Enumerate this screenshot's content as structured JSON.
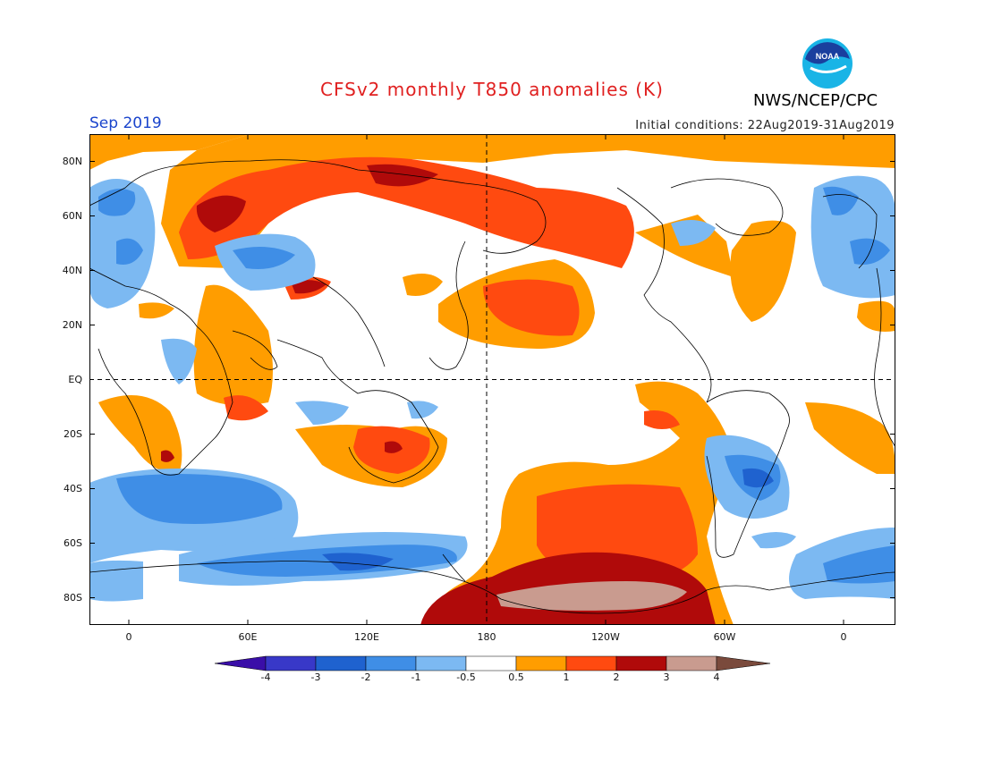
{
  "header": {
    "title": "CFSv2 monthly T850 anomalies (K)",
    "agency": "NWS/NCEP/CPC",
    "logo_text": "NOAA",
    "month": "Sep 2019",
    "initial_conditions": "Initial conditions: 22Aug2019-31Aug2019"
  },
  "map": {
    "lat_labels": [
      "80N",
      "60N",
      "40N",
      "20N",
      "EQ",
      "20S",
      "40S",
      "60S",
      "80S"
    ],
    "lon_labels": [
      "0",
      "60E",
      "120E",
      "180",
      "120W",
      "60W",
      "0"
    ],
    "reference_lines": [
      "EQ",
      "180"
    ]
  },
  "colorbar": {
    "labels": [
      "-4",
      "-3",
      "-2",
      "-1",
      "-0.5",
      "0.5",
      "1",
      "2",
      "3",
      "4"
    ],
    "colors": [
      "#3a0ea8",
      "#3838c8",
      "#1f62cf",
      "#3f8ee6",
      "#7cb9f2",
      "#ffffff",
      "#ff9d00",
      "#ff4a10",
      "#b00a0a",
      "#c99b8f",
      "#7a4a3c"
    ]
  }
}
